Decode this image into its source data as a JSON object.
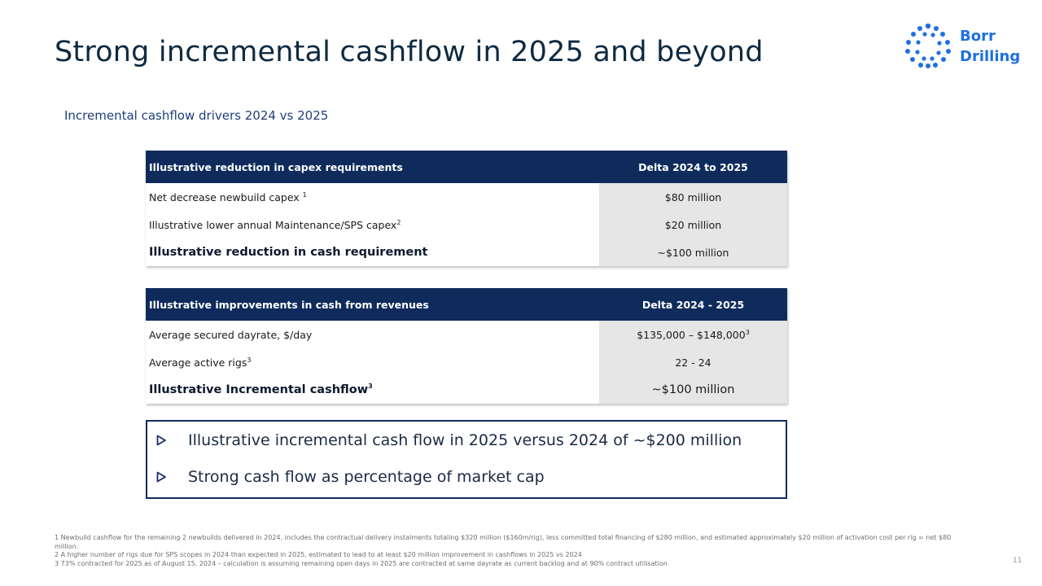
{
  "slide": {
    "title": "Strong incremental cashflow in 2025 and beyond",
    "subtitle": "Incremental cashflow drivers 2024 vs 2025",
    "page_number": "11"
  },
  "logo": {
    "line1": "Borr",
    "line2": "Drilling",
    "icon": "borr-drilling-dots-logo",
    "color": "#1f6fe0"
  },
  "table1": {
    "header_label": "Illustrative reduction in capex requirements",
    "header_value": "Delta 2024  to 2025",
    "rows": [
      {
        "label": "Net decrease newbuild capex",
        "sup": "1",
        "value": "$80 million",
        "value_sup": ""
      },
      {
        "label": "Illustrative lower annual Maintenance/SPS capex",
        "sup": "2",
        "value": "$20 million",
        "value_sup": ""
      },
      {
        "label": "Illustrative reduction in cash requirement",
        "sup": "",
        "value": "~$100 million",
        "value_sup": ""
      }
    ]
  },
  "table2": {
    "header_label": "Illustrative improvements in cash from revenues",
    "header_value": "Delta 2024  - 2025",
    "rows": [
      {
        "label": "Average secured dayrate, $/day",
        "sup": "",
        "value": "$135,000 – $148,000",
        "value_sup": "3"
      },
      {
        "label": "Average active rigs",
        "sup": "3",
        "value": "22 - 24",
        "value_sup": ""
      },
      {
        "label": "Illustrative Incremental cashflow",
        "sup": "3",
        "value": "~$100 million",
        "value_sup": ""
      }
    ]
  },
  "highlights": {
    "icon": "play-arrow-icon",
    "items": [
      "Illustrative incremental cash flow in 2025 versus 2024 of ~$200 million",
      "Strong cash flow as percentage of market cap"
    ]
  },
  "footnotes": {
    "n1": "1 Newbuild  cashflow  for the remaining  2 newbuilds  delivered  in 2024, includes the contractual  delivery instalments  totaling $320 million  ($160m/rig), less committed  total financing  of $280 million,  and estimated approximately  $20 million of activation  cost per rig = net $80 million.",
    "n2": "2 A higher number of rigs due for SPS scopes in 2024 than expected  in 2025, estimated to lead to at least $20 million  improvement  in cashflows  in 2025 vs 2024",
    "n3": "3 73% contracted  for 2025 as of August 15, 2024 – calculation  is assuming remaining  open days in 2025 are contracted  at same dayrate as current backlog  and at 90% contract  utilisation"
  }
}
